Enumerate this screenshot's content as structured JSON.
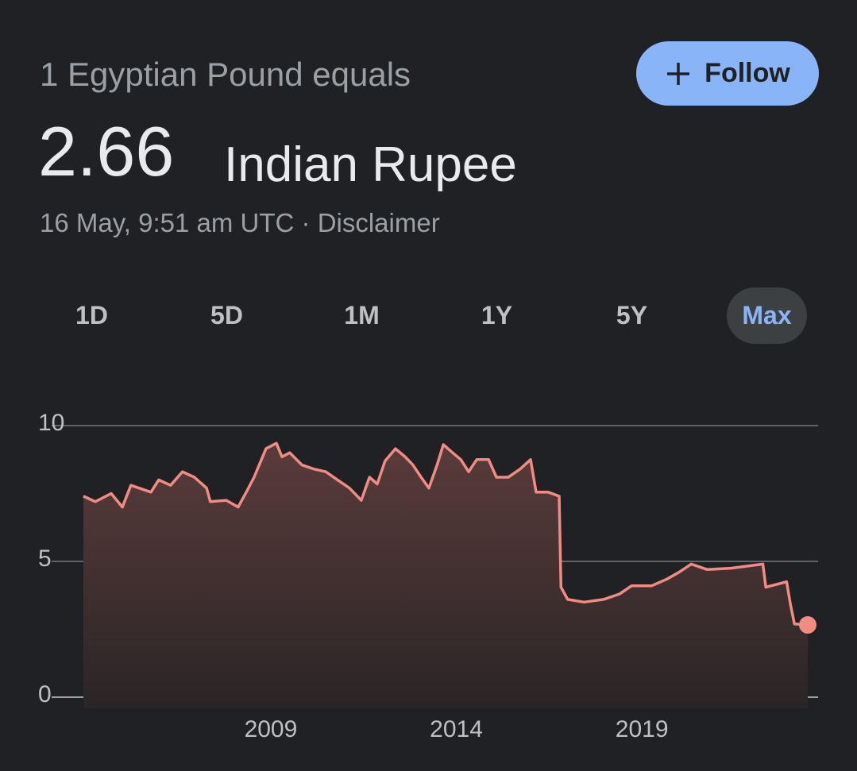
{
  "header": {
    "subtitle": "1 Egyptian Pound equals",
    "value": "2.66",
    "unit": "Indian Rupee",
    "timestamp": "16 May, 9:51 am UTC",
    "separator": "·",
    "disclaimer": "Disclaimer"
  },
  "follow_button": {
    "label": "Follow"
  },
  "range_tabs": {
    "options": [
      "1D",
      "5D",
      "1M",
      "1Y",
      "5Y",
      "Max"
    ],
    "selected_index": 5
  },
  "chart_data": {
    "type": "line",
    "color": "#f28b82",
    "x": [
      2003.95,
      2004.27,
      2004.7,
      2005.0,
      2005.23,
      2005.77,
      2005.98,
      2006.3,
      2006.62,
      2006.94,
      2007.27,
      2007.37,
      2007.8,
      2008.12,
      2008.34,
      2008.55,
      2008.87,
      2009.15,
      2009.3,
      2009.51,
      2009.84,
      2010.16,
      2010.48,
      2010.8,
      2011.12,
      2011.44,
      2011.66,
      2011.87,
      2012.08,
      2012.36,
      2012.62,
      2012.83,
      2013.05,
      2013.26,
      2013.48,
      2013.65,
      2013.9,
      2014.12,
      2014.33,
      2014.55,
      2014.87,
      2015.08,
      2015.4,
      2015.72,
      2016.0,
      2016.15,
      2016.47,
      2016.77,
      2016.82,
      2017.0,
      2017.44,
      2017.97,
      2018.4,
      2018.72,
      2019.26,
      2019.68,
      2020.0,
      2020.33,
      2020.76,
      2021.4,
      2022.26,
      2022.34,
      2022.9,
      2023.0,
      2023.11,
      2023.47
    ],
    "values": [
      7.4,
      7.2,
      7.5,
      7.0,
      7.8,
      7.55,
      8.0,
      7.8,
      8.3,
      8.1,
      7.7,
      7.2,
      7.25,
      7.0,
      7.55,
      8.1,
      9.15,
      9.35,
      8.85,
      9.0,
      8.55,
      8.4,
      8.3,
      8.0,
      7.7,
      7.25,
      8.1,
      7.85,
      8.7,
      9.15,
      8.85,
      8.55,
      8.1,
      7.7,
      8.55,
      9.3,
      9.0,
      8.75,
      8.3,
      8.75,
      8.75,
      8.1,
      8.1,
      8.4,
      8.75,
      7.55,
      7.55,
      7.4,
      4.05,
      3.6,
      3.5,
      3.6,
      3.8,
      4.1,
      4.1,
      4.35,
      4.6,
      4.9,
      4.7,
      4.75,
      4.9,
      4.05,
      4.25,
      3.45,
      2.7,
      2.66
    ],
    "xlim": [
      2003.95,
      2023.47
    ],
    "xticks": [
      2009,
      2014,
      2019
    ],
    "ylim": [
      0,
      10
    ],
    "yticks": [
      0,
      5,
      10
    ],
    "grid": true
  }
}
